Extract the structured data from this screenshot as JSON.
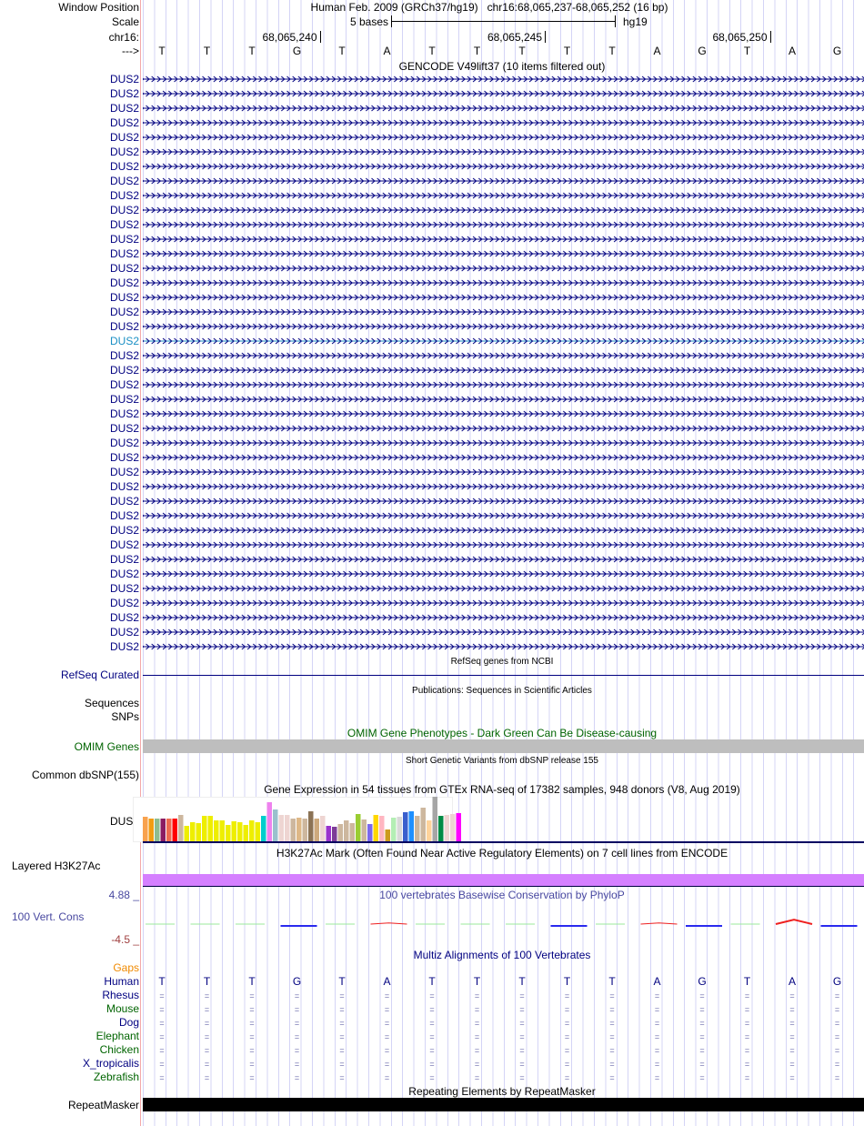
{
  "header": {
    "window_position_label": "Window Position",
    "window_position_text": "Human Feb. 2009 (GRCh37/hg19)   chr16:68,065,237-68,065,252 (16 bp)",
    "scale_label": "Scale",
    "scale_text": "5 bases",
    "scale_assembly": "hg19",
    "chrom_label": "chr16:",
    "coord_ticks": [
      "68,065,240",
      "68,065,245",
      "68,065,250"
    ],
    "strand_label": "--->",
    "sequence": [
      "T",
      "T",
      "T",
      "G",
      "T",
      "A",
      "T",
      "T",
      "T",
      "T",
      "T",
      "A",
      "G",
      "T",
      "A",
      "G"
    ]
  },
  "gencode": {
    "title": "GENCODE V49lift37 (10 items filtered out)",
    "rows": [
      "DUS2",
      "DUS2",
      "DUS2",
      "DUS2",
      "DUS2",
      "DUS2",
      "DUS2",
      "DUS2",
      "DUS2",
      "DUS2",
      "DUS2",
      "DUS2",
      "DUS2",
      "DUS2",
      "DUS2",
      "DUS2",
      "DUS2",
      "DUS2",
      "DUS2",
      "DUS2",
      "DUS2",
      "DUS2",
      "DUS2",
      "DUS2",
      "DUS2",
      "DUS2",
      "DUS2",
      "DUS2",
      "DUS2",
      "DUS2",
      "DUS2",
      "DUS2",
      "DUS2",
      "DUS2",
      "DUS2",
      "DUS2",
      "DUS2",
      "DUS2",
      "DUS2",
      "DUS2"
    ],
    "highlighted_row": 18,
    "color": "#000080",
    "highlight_color": "#1a8fc4"
  },
  "refseq": {
    "title": "RefSeq genes from NCBI",
    "label": "RefSeq Curated"
  },
  "publications": {
    "title": "Publications: Sequences in Scientific Articles",
    "label1": "Sequences",
    "label2": "SNPs"
  },
  "omim": {
    "title": "OMIM Gene Phenotypes - Dark Green Can Be Disease-causing",
    "label": "OMIM Genes"
  },
  "dbsnp": {
    "title": "Short Genetic Variants from dbSNP release 155",
    "label": "Common dbSNP(155)"
  },
  "gtex": {
    "title": "Gene Expression in 54 tissues from GTEx RNA-seq of 17382 samples, 948 donors (V8, Aug 2019)",
    "label": "DUS2",
    "values": [
      27,
      25,
      25,
      25,
      25,
      25,
      29,
      17,
      21,
      20,
      28,
      28,
      23,
      23,
      18,
      22,
      21,
      18,
      23,
      21,
      28,
      43,
      35,
      29,
      29,
      25,
      26,
      25,
      33,
      25,
      28,
      17,
      16,
      19,
      23,
      20,
      30,
      24,
      19,
      29,
      28,
      13,
      26,
      27,
      32,
      33,
      28,
      37,
      23,
      49,
      28,
      29,
      30,
      31
    ],
    "colors": [
      "#f8a24e",
      "#f29c11",
      "#8fbc8f",
      "#8b1c62",
      "#ee6a50",
      "#ff0000",
      "#cdb79e",
      "#eeee00",
      "#eeee00",
      "#eeee00",
      "#eeee00",
      "#eeee00",
      "#eeee00",
      "#eeee00",
      "#eeee00",
      "#eeee00",
      "#eeee00",
      "#eeee00",
      "#eeee00",
      "#eeee00",
      "#00cdcd",
      "#ee82ee",
      "#9ac0cd",
      "#eed5d2",
      "#eed5d2",
      "#cdb79e",
      "#deb887",
      "#cdb79e",
      "#8b7355",
      "#cdaa7d",
      "#eed5d2",
      "#9a32cd",
      "#7d3c98",
      "#cdb79e",
      "#cdb79e",
      "#cdb79e",
      "#9acd32",
      "#cdb79e",
      "#7b68ee",
      "#ffd700",
      "#ffb6c1",
      "#cd9b1d",
      "#b4eeb4",
      "#d9d9d9",
      "#3a5fcd",
      "#1e90ff",
      "#cdb79e",
      "#cdb79e",
      "#ffd39b",
      "#a6a6a6",
      "#008b45",
      "#eed5d2",
      "#eed5d2",
      "#ff00ff"
    ]
  },
  "h3k27ac": {
    "title": "H3K27Ac Mark (Often Found Near Active Regulatory Elements) on 7 cell lines from ENCODE",
    "label": "Layered H3K27Ac",
    "color": "#d580ff"
  },
  "conservation": {
    "title": "100 vertebrates Basewise Conservation by PhyloP",
    "label": "100 Vert. Cons",
    "max_label": "4.88 _",
    "min_label": "-4.5 _",
    "values": [
      0,
      0,
      0,
      0.3,
      0,
      -0.2,
      0,
      0,
      0,
      0.4,
      0,
      -0.2,
      0.2,
      0,
      -0.8,
      0.3
    ]
  },
  "multiz": {
    "title": "Multiz Alignments of 100 Vertebrates",
    "gaps_label": "Gaps",
    "human_label": "Human",
    "species": [
      {
        "name": "Rhesus",
        "color": "#000080"
      },
      {
        "name": "Mouse",
        "color": "#006400"
      },
      {
        "name": "Dog",
        "color": "#000080"
      },
      {
        "name": "Elephant",
        "color": "#006400"
      },
      {
        "name": "Chicken",
        "color": "#006400"
      },
      {
        "name": "X_tropicalis",
        "color": "#000080"
      },
      {
        "name": "Zebrafish",
        "color": "#006400"
      }
    ],
    "match_symbol": "="
  },
  "repeatmasker": {
    "title": "Repeating Elements by RepeatMasker",
    "label": "RepeatMasker"
  }
}
